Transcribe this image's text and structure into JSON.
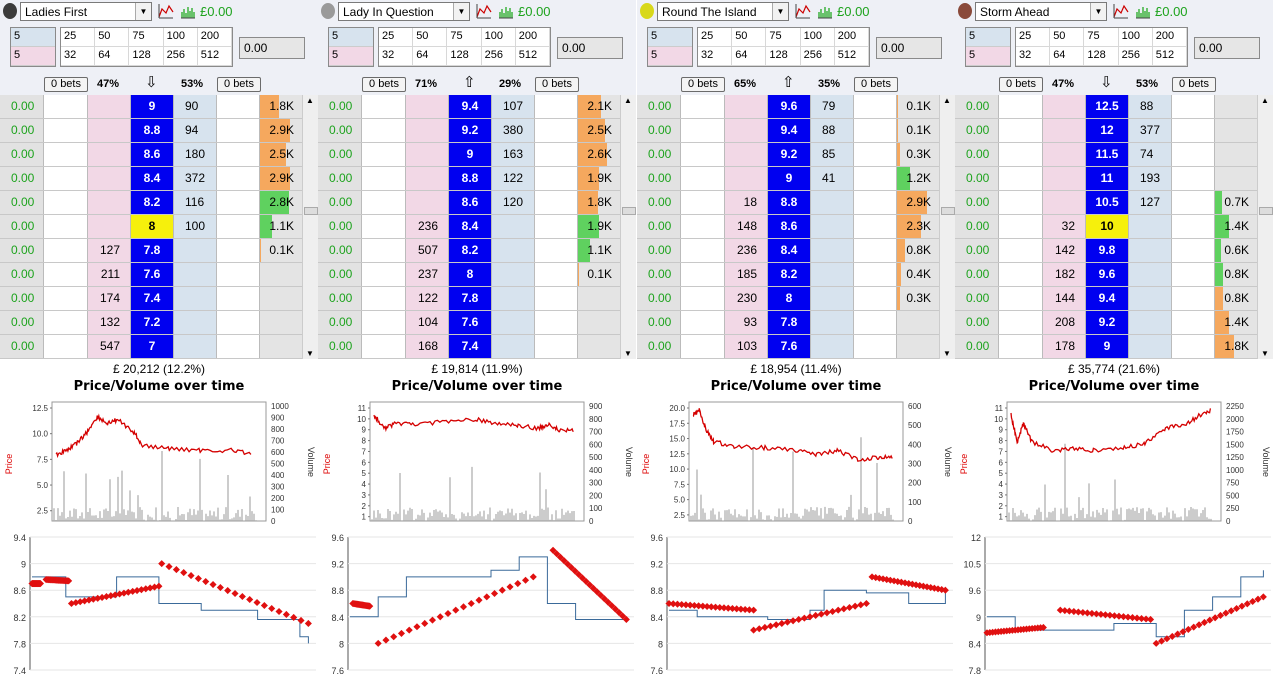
{
  "runners": [
    {
      "name": "Ladies First",
      "silk_color": "#3b3b3b",
      "pl": "£0.00",
      "stakes": [
        "5",
        "5"
      ],
      "stake_grid": [
        "25",
        "50",
        "75",
        "100",
        "200",
        "32",
        "64",
        "128",
        "256",
        "512"
      ],
      "amount": "0.00",
      "back_bets": "0 bets",
      "lay_bets": "0 bets",
      "back_pct": "47%",
      "lay_pct": "53%",
      "direction": "⇩",
      "rows": [
        {
          "pl": "0.00",
          "back": "",
          "price": "9",
          "lay": "90",
          "vol": "1.8K",
          "volpct": 0.45,
          "volcolor": "#f5a85e",
          "current": false
        },
        {
          "pl": "0.00",
          "back": "",
          "price": "8.8",
          "lay": "94",
          "vol": "2.9K",
          "volpct": 0.72,
          "volcolor": "#f5a85e",
          "current": false
        },
        {
          "pl": "0.00",
          "back": "",
          "price": "8.6",
          "lay": "180",
          "vol": "2.5K",
          "volpct": 0.62,
          "volcolor": "#f5a85e",
          "current": false
        },
        {
          "pl": "0.00",
          "back": "",
          "price": "8.4",
          "lay": "372",
          "vol": "2.9K",
          "volpct": 0.72,
          "volcolor": "#f5a85e",
          "current": false
        },
        {
          "pl": "0.00",
          "back": "",
          "price": "8.2",
          "lay": "116",
          "vol": "2.8K",
          "volpct": 0.7,
          "volcolor": "#5fd15f",
          "current": false
        },
        {
          "pl": "0.00",
          "back": "",
          "price": "8",
          "lay": "100",
          "vol": "1.1K",
          "volpct": 0.28,
          "volcolor": "#5fd15f",
          "current": true
        },
        {
          "pl": "0.00",
          "back": "127",
          "price": "7.8",
          "lay": "",
          "vol": "0.1K",
          "volpct": 0.03,
          "volcolor": "#f5a85e",
          "current": false
        },
        {
          "pl": "0.00",
          "back": "211",
          "price": "7.6",
          "lay": "",
          "vol": "",
          "volpct": 0,
          "volcolor": "#f5a85e",
          "current": false
        },
        {
          "pl": "0.00",
          "back": "174",
          "price": "7.4",
          "lay": "",
          "vol": "",
          "volpct": 0,
          "volcolor": "#f5a85e",
          "current": false
        },
        {
          "pl": "0.00",
          "back": "132",
          "price": "7.2",
          "lay": "",
          "vol": "",
          "volpct": 0,
          "volcolor": "#f5a85e",
          "current": false
        },
        {
          "pl": "0.00",
          "back": "547",
          "price": "7",
          "lay": "",
          "vol": "",
          "volpct": 0,
          "volcolor": "#f5a85e",
          "current": false
        }
      ],
      "matched": "£ 20,212  (12.2%)",
      "chart_title": "Price/Volume over time",
      "price_axis_label": "Price",
      "volume_axis_label": "Volume",
      "price_ticks": [
        "12.5",
        "10.0",
        "7.5",
        "5.0",
        "2.5"
      ],
      "volume_ticks": [
        "1000",
        "900",
        "800",
        "700",
        "600",
        "500",
        "400",
        "300",
        "200",
        "100",
        "0"
      ],
      "lower_ticks": [
        "9.4",
        "9",
        "8.6",
        "8.2",
        "7.8",
        "7.4"
      ]
    },
    {
      "name": "Lady In Question",
      "silk_color": "#9a9a9a",
      "pl": "£0.00",
      "stakes": [
        "5",
        "5"
      ],
      "stake_grid": [
        "25",
        "50",
        "75",
        "100",
        "200",
        "32",
        "64",
        "128",
        "256",
        "512"
      ],
      "amount": "0.00",
      "back_bets": "0 bets",
      "lay_bets": "0 bets",
      "back_pct": "71%",
      "lay_pct": "29%",
      "direction": "⇧",
      "rows": [
        {
          "pl": "0.00",
          "back": "",
          "price": "9.4",
          "lay": "107",
          "vol": "2.1K",
          "volpct": 0.55,
          "volcolor": "#f5a85e",
          "current": false
        },
        {
          "pl": "0.00",
          "back": "",
          "price": "9.2",
          "lay": "380",
          "vol": "2.5K",
          "volpct": 0.65,
          "volcolor": "#f5a85e",
          "current": false
        },
        {
          "pl": "0.00",
          "back": "",
          "price": "9",
          "lay": "163",
          "vol": "2.6K",
          "volpct": 0.68,
          "volcolor": "#f5a85e",
          "current": false
        },
        {
          "pl": "0.00",
          "back": "",
          "price": "8.8",
          "lay": "122",
          "vol": "1.9K",
          "volpct": 0.5,
          "volcolor": "#f5a85e",
          "current": false
        },
        {
          "pl": "0.00",
          "back": "",
          "price": "8.6",
          "lay": "120",
          "vol": "1.8K",
          "volpct": 0.47,
          "volcolor": "#f5a85e",
          "current": false
        },
        {
          "pl": "0.00",
          "back": "236",
          "price": "8.4",
          "lay": "",
          "vol": "1.9K",
          "volpct": 0.5,
          "volcolor": "#5fd15f",
          "current": false
        },
        {
          "pl": "0.00",
          "back": "507",
          "price": "8.2",
          "lay": "",
          "vol": "1.1K",
          "volpct": 0.28,
          "volcolor": "#5fd15f",
          "current": false
        },
        {
          "pl": "0.00",
          "back": "237",
          "price": "8",
          "lay": "",
          "vol": "0.1K",
          "volpct": 0.03,
          "volcolor": "#f5a85e",
          "current": false
        },
        {
          "pl": "0.00",
          "back": "122",
          "price": "7.8",
          "lay": "",
          "vol": "",
          "volpct": 0,
          "volcolor": "#f5a85e",
          "current": false
        },
        {
          "pl": "0.00",
          "back": "104",
          "price": "7.6",
          "lay": "",
          "vol": "",
          "volpct": 0,
          "volcolor": "#f5a85e",
          "current": false
        },
        {
          "pl": "0.00",
          "back": "168",
          "price": "7.4",
          "lay": "",
          "vol": "",
          "volpct": 0,
          "volcolor": "#f5a85e",
          "current": false
        }
      ],
      "matched": "£ 19,814  (11.9%)",
      "chart_title": "Price/Volume over time",
      "price_axis_label": "Price",
      "volume_axis_label": "Volume",
      "price_ticks": [
        "11",
        "10",
        "9",
        "8",
        "7",
        "6",
        "5",
        "4",
        "3",
        "2",
        "1"
      ],
      "volume_ticks": [
        "900",
        "800",
        "700",
        "600",
        "500",
        "400",
        "300",
        "200",
        "100",
        "0"
      ],
      "lower_ticks": [
        "9.6",
        "9.2",
        "8.8",
        "8.4",
        "8",
        "7.6"
      ]
    },
    {
      "name": "Round The Island",
      "silk_color": "#d8d81a",
      "pl": "£0.00",
      "stakes": [
        "5",
        "5"
      ],
      "stake_grid": [
        "25",
        "50",
        "75",
        "100",
        "200",
        "32",
        "64",
        "128",
        "256",
        "512"
      ],
      "amount": "0.00",
      "back_bets": "0 bets",
      "lay_bets": "0 bets",
      "back_pct": "65%",
      "lay_pct": "35%",
      "direction": "⇧",
      "rows": [
        {
          "pl": "0.00",
          "back": "",
          "price": "9.6",
          "lay": "79",
          "vol": "0.1K",
          "volpct": 0.03,
          "volcolor": "#f5a85e",
          "current": false
        },
        {
          "pl": "0.00",
          "back": "",
          "price": "9.4",
          "lay": "88",
          "vol": "0.1K",
          "volpct": 0.03,
          "volcolor": "#f5a85e",
          "current": false
        },
        {
          "pl": "0.00",
          "back": "",
          "price": "9.2",
          "lay": "85",
          "vol": "0.3K",
          "volpct": 0.08,
          "volcolor": "#f5a85e",
          "current": false
        },
        {
          "pl": "0.00",
          "back": "",
          "price": "9",
          "lay": "41",
          "vol": "1.2K",
          "volpct": 0.3,
          "volcolor": "#5fd15f",
          "current": false
        },
        {
          "pl": "0.00",
          "back": "18",
          "price": "8.8",
          "lay": "",
          "vol": "2.9K",
          "volpct": 0.72,
          "volcolor": "#f5a85e",
          "current": false
        },
        {
          "pl": "0.00",
          "back": "148",
          "price": "8.6",
          "lay": "",
          "vol": "2.3K",
          "volpct": 0.58,
          "volcolor": "#f5a85e",
          "current": false
        },
        {
          "pl": "0.00",
          "back": "236",
          "price": "8.4",
          "lay": "",
          "vol": "0.8K",
          "volpct": 0.2,
          "volcolor": "#f5a85e",
          "current": false
        },
        {
          "pl": "0.00",
          "back": "185",
          "price": "8.2",
          "lay": "",
          "vol": "0.4K",
          "volpct": 0.1,
          "volcolor": "#f5a85e",
          "current": false
        },
        {
          "pl": "0.00",
          "back": "230",
          "price": "8",
          "lay": "",
          "vol": "0.3K",
          "volpct": 0.08,
          "volcolor": "#f5a85e",
          "current": false
        },
        {
          "pl": "0.00",
          "back": "93",
          "price": "7.8",
          "lay": "",
          "vol": "",
          "volpct": 0,
          "volcolor": "#f5a85e",
          "current": false
        },
        {
          "pl": "0.00",
          "back": "103",
          "price": "7.6",
          "lay": "",
          "vol": "",
          "volpct": 0,
          "volcolor": "#f5a85e",
          "current": false
        }
      ],
      "matched": "£ 18,954  (11.4%)",
      "chart_title": "Price/Volume over time",
      "price_axis_label": "Price",
      "volume_axis_label": "Volume",
      "price_ticks": [
        "20.0",
        "17.5",
        "15.0",
        "12.5",
        "10.0",
        "7.5",
        "5.0",
        "2.5"
      ],
      "volume_ticks": [
        "600",
        "500",
        "400",
        "300",
        "200",
        "100",
        "0"
      ],
      "lower_ticks": [
        "9.6",
        "9.2",
        "8.8",
        "8.4",
        "8",
        "7.6"
      ]
    },
    {
      "name": "Storm Ahead",
      "silk_color": "#8a4a3a",
      "pl": "£0.00",
      "stakes": [
        "5",
        "5"
      ],
      "stake_grid": [
        "25",
        "50",
        "75",
        "100",
        "200",
        "32",
        "64",
        "128",
        "256",
        "512"
      ],
      "amount": "0.00",
      "back_bets": "0 bets",
      "lay_bets": "0 bets",
      "back_pct": "47%",
      "lay_pct": "53%",
      "direction": "⇩",
      "rows": [
        {
          "pl": "0.00",
          "back": "",
          "price": "12.5",
          "lay": "88",
          "vol": "",
          "volpct": 0,
          "volcolor": "#f5a85e",
          "current": false
        },
        {
          "pl": "0.00",
          "back": "",
          "price": "12",
          "lay": "377",
          "vol": "",
          "volpct": 0,
          "volcolor": "#f5a85e",
          "current": false
        },
        {
          "pl": "0.00",
          "back": "",
          "price": "11.5",
          "lay": "74",
          "vol": "",
          "volpct": 0,
          "volcolor": "#f5a85e",
          "current": false
        },
        {
          "pl": "0.00",
          "back": "",
          "price": "11",
          "lay": "193",
          "vol": "",
          "volpct": 0,
          "volcolor": "#f5a85e",
          "current": false
        },
        {
          "pl": "0.00",
          "back": "",
          "price": "10.5",
          "lay": "127",
          "vol": "0.7K",
          "volpct": 0.17,
          "volcolor": "#5fd15f",
          "current": false
        },
        {
          "pl": "0.00",
          "back": "32",
          "price": "10",
          "lay": "",
          "vol": "1.4K",
          "volpct": 0.33,
          "volcolor": "#5fd15f",
          "current": true
        },
        {
          "pl": "0.00",
          "back": "142",
          "price": "9.8",
          "lay": "",
          "vol": "0.6K",
          "volpct": 0.15,
          "volcolor": "#5fd15f",
          "current": false
        },
        {
          "pl": "0.00",
          "back": "182",
          "price": "9.6",
          "lay": "",
          "vol": "0.8K",
          "volpct": 0.2,
          "volcolor": "#5fd15f",
          "current": false
        },
        {
          "pl": "0.00",
          "back": "144",
          "price": "9.4",
          "lay": "",
          "vol": "0.8K",
          "volpct": 0.2,
          "volcolor": "#f5a85e",
          "current": false
        },
        {
          "pl": "0.00",
          "back": "208",
          "price": "9.2",
          "lay": "",
          "vol": "1.4K",
          "volpct": 0.33,
          "volcolor": "#f5a85e",
          "current": false
        },
        {
          "pl": "0.00",
          "back": "178",
          "price": "9",
          "lay": "",
          "vol": "1.8K",
          "volpct": 0.45,
          "volcolor": "#f5a85e",
          "current": false
        }
      ],
      "matched": "£ 35,774  (21.6%)",
      "chart_title": "Price/Volume over time",
      "price_axis_label": "Price",
      "volume_axis_label": "Volume",
      "price_ticks": [
        "11",
        "10",
        "9",
        "8",
        "7",
        "6",
        "5",
        "4",
        "3",
        "2",
        "1"
      ],
      "volume_ticks": [
        "2250",
        "2000",
        "1750",
        "1500",
        "1250",
        "1000",
        "750",
        "500",
        "250",
        "0"
      ],
      "lower_ticks": [
        "12",
        "10.5",
        "9.6",
        "9",
        "8.4",
        "7.8"
      ]
    }
  ]
}
